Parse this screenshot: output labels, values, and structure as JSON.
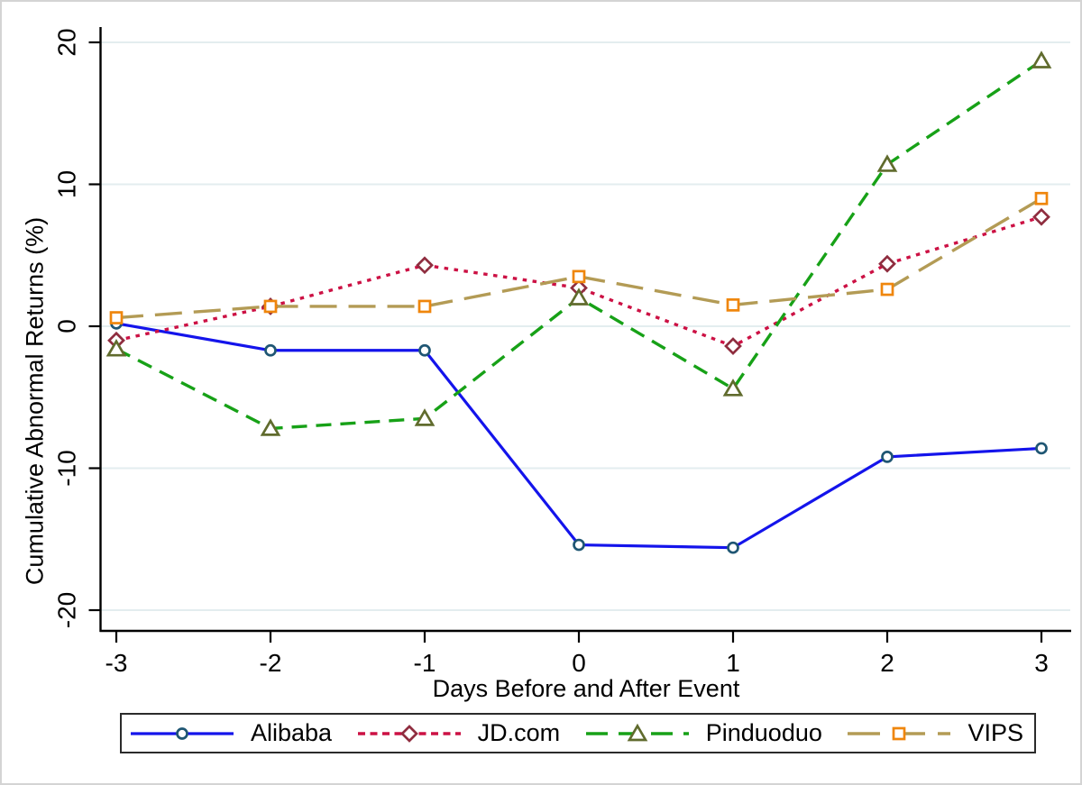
{
  "figure": {
    "background_color": "#ffffff",
    "border_color": "#d4d4d4"
  },
  "chart_data": {
    "type": "line",
    "title": "",
    "xlabel": "Days Before and After Event",
    "ylabel": "Cumulative Abnormal Returns (%)",
    "x": [
      -3,
      -2,
      -1,
      0,
      1,
      2,
      3
    ],
    "x_tick_labels": [
      "-3",
      "-2",
      "-1",
      "0",
      "1",
      "2",
      "3"
    ],
    "y_ticks": [
      -20,
      -10,
      0,
      10,
      20
    ],
    "y_tick_labels": [
      "-20",
      "-10",
      "0",
      "10",
      "20"
    ],
    "xlim": [
      -3,
      3
    ],
    "ylim": [
      -21,
      21
    ],
    "grid": true,
    "gridline_color": "#e3edef",
    "axis_color": "#000000",
    "legend_position": "bottom",
    "legend_border_color": "#2b2b2b",
    "series": [
      {
        "name": "Alibaba",
        "marker": "circle",
        "line_style": "solid",
        "line_color": "#1414eb",
        "marker_color": "#1f5673",
        "values": [
          0.2,
          -1.7,
          -1.7,
          -15.4,
          -15.6,
          -9.2,
          -8.6
        ]
      },
      {
        "name": "JD.com",
        "marker": "diamond",
        "line_style": "dotted",
        "line_color": "#cc1144",
        "marker_color": "#8f2d3f",
        "values": [
          -1.0,
          1.4,
          4.3,
          2.7,
          -1.4,
          4.4,
          7.7
        ]
      },
      {
        "name": "Pinduoduo",
        "marker": "triangle",
        "line_style": "dashed",
        "line_color": "#17a117",
        "marker_color": "#606b2d",
        "values": [
          -1.6,
          -7.2,
          -6.5,
          2.0,
          -4.4,
          11.4,
          18.7
        ]
      },
      {
        "name": "VIPS",
        "marker": "square",
        "line_style": "longdash",
        "line_color": "#b39b55",
        "marker_color": "#ef860c",
        "values": [
          0.6,
          1.4,
          1.4,
          3.5,
          1.5,
          2.6,
          9.0
        ]
      }
    ]
  }
}
